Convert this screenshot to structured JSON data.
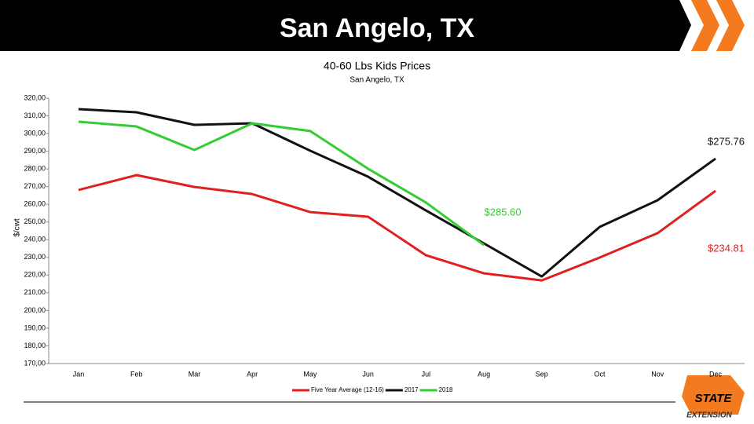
{
  "header": {
    "title": "San Angelo, TX"
  },
  "chart_data": {
    "type": "line",
    "title": "40-60 Lbs Kids Prices",
    "subtitle": "San Angelo, TX",
    "y_label": "$/cwt",
    "categories": [
      "Jan",
      "Feb",
      "Mar",
      "Apr",
      "May",
      "Jun",
      "Jul",
      "Aug",
      "Sep",
      "Oct",
      "Nov",
      "Dec"
    ],
    "series": [
      {
        "name": "Five Year Average (12-16)",
        "color": "#e02020",
        "values": [
          268.1,
          276.5,
          269.8,
          265.8,
          255.6,
          253.0,
          231.2,
          221.0,
          217.0,
          229.9,
          243.7,
          267.6
        ]
      },
      {
        "name": "2017",
        "color": "#111111",
        "values": [
          313.8,
          312.0,
          304.9,
          305.8,
          290.3,
          275.6,
          256.5,
          237.9,
          219.2,
          247.2,
          262.3,
          285.8
        ]
      },
      {
        "name": "2018",
        "color": "#33cc33",
        "values": [
          306.7,
          304.0,
          290.7,
          305.8,
          301.4,
          280.1,
          261.0,
          237.0,
          null,
          null,
          null,
          null
        ]
      }
    ],
    "ylim": [
      170,
      320
    ],
    "yticks": [
      {
        "value": 170,
        "label": "170,00"
      },
      {
        "value": 180,
        "label": "180,00"
      },
      {
        "value": 190,
        "label": "190,00"
      },
      {
        "value": 200,
        "label": "200,00"
      },
      {
        "value": 210,
        "label": "210,00"
      },
      {
        "value": 220,
        "label": "220,00"
      },
      {
        "value": 230,
        "label": "230,00"
      },
      {
        "value": 240,
        "label": "240,00"
      },
      {
        "value": 250,
        "label": "250,00"
      },
      {
        "value": 260,
        "label": "260,00"
      },
      {
        "value": 270,
        "label": "270,00"
      },
      {
        "value": 280,
        "label": "280,00"
      },
      {
        "value": 290,
        "label": "290,00"
      },
      {
        "value": 300,
        "label": "300,00"
      },
      {
        "value": 310,
        "label": "310,00"
      },
      {
        "value": 320,
        "label": "320,00"
      }
    ],
    "grid": false,
    "legend": "bottom",
    "annotations": [
      {
        "text": "$275.76",
        "color": "#111111"
      },
      {
        "text": "$285.60",
        "color": "#33cc33"
      },
      {
        "text": "$234.81",
        "color": "#e02020"
      }
    ]
  },
  "logo": {
    "top": "STATE",
    "bottom": "EXTENSION"
  }
}
